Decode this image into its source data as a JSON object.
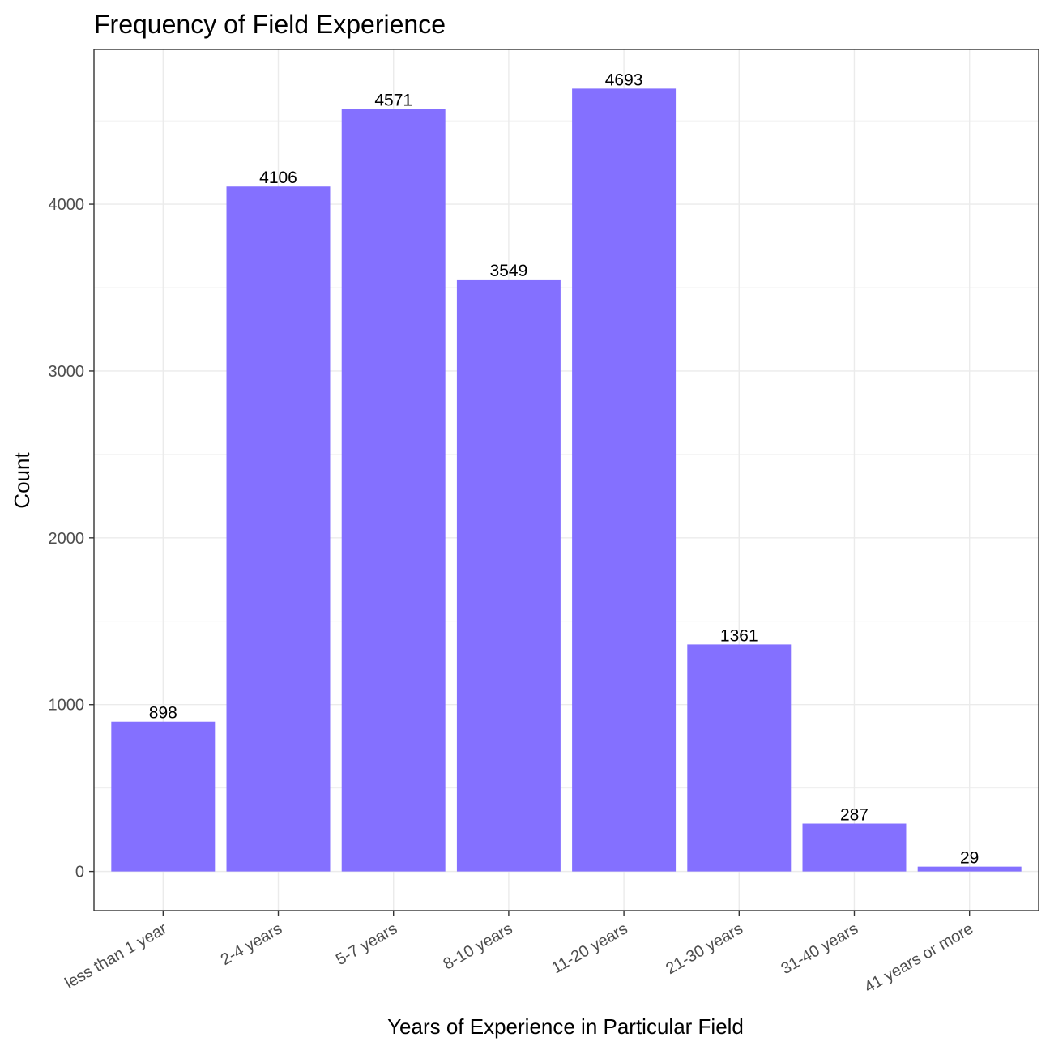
{
  "chart_data": {
    "type": "bar",
    "title": "Frequency of Field Experience",
    "xlabel": "Years of Experience in Particular Field",
    "ylabel": "Count",
    "categories": [
      "less than 1 year",
      "2-4 years",
      "5-7 years",
      "8-10 years",
      "11-20 years",
      "21-30 years",
      "31-40 years",
      "41 years or more"
    ],
    "values": [
      898,
      4106,
      4571,
      3549,
      4693,
      1361,
      287,
      29
    ],
    "ylim": [
      -235,
      4928
    ],
    "yticks": [
      0,
      1000,
      2000,
      3000,
      4000
    ],
    "yticks_minor": [
      500,
      1500,
      2500,
      3500,
      4500
    ],
    "grid": true,
    "legend": "none",
    "bar_color": "#8470FF",
    "grid_color": "#EBEBEB",
    "panel_border_color": "#333333"
  }
}
